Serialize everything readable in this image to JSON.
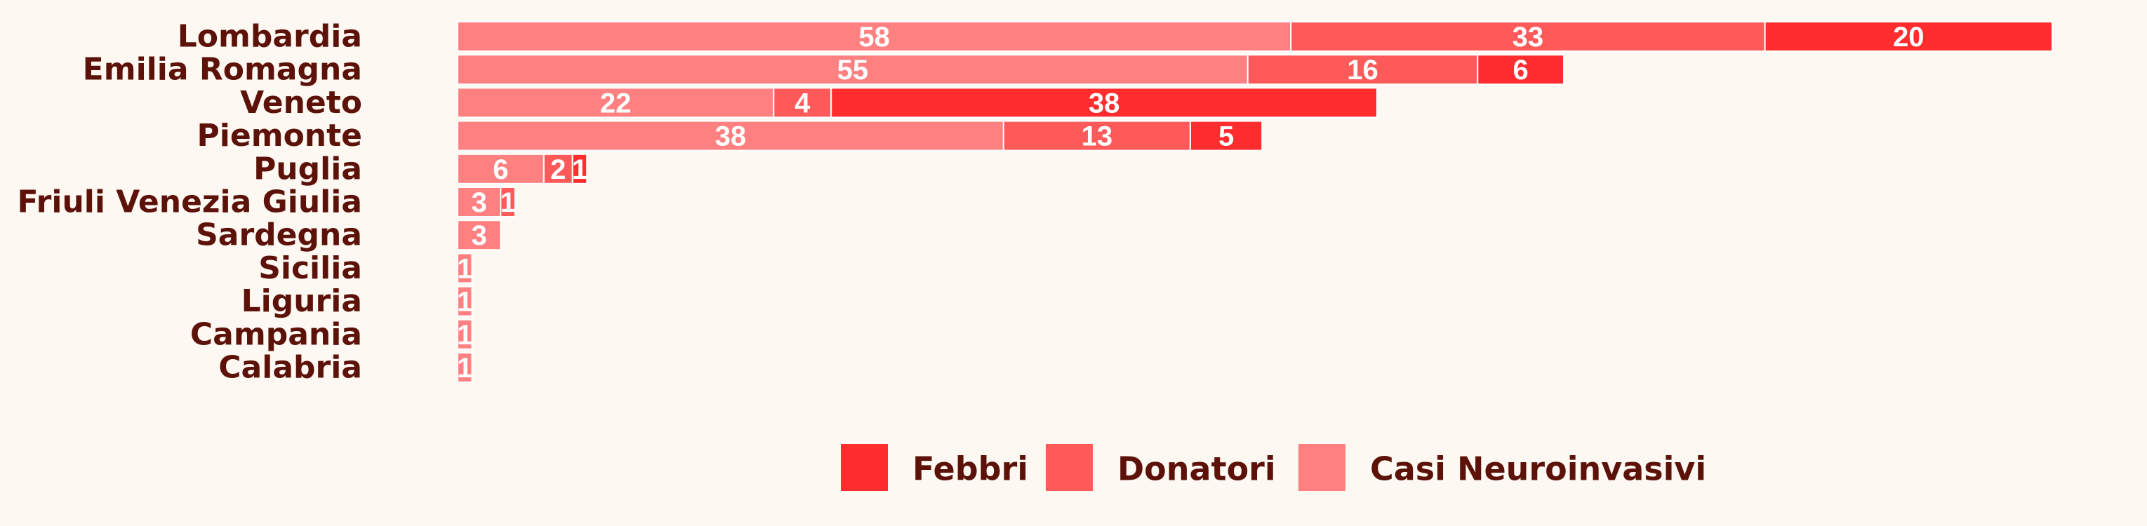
{
  "chart_data": {
    "type": "bar",
    "orientation": "horizontal",
    "stacked": true,
    "categories": [
      "Lombardia",
      "Emilia Romagna",
      "Veneto",
      "Piemonte",
      "Puglia",
      "Friuli Venezia Giulia",
      "Sardegna",
      "Sicilia",
      "Liguria",
      "Campania",
      "Calabria"
    ],
    "series": [
      {
        "name": "Casi Neuroinvasivi",
        "color": "#ff8080",
        "values": [
          58,
          55,
          22,
          38,
          6,
          3,
          3,
          1,
          1,
          1,
          1
        ]
      },
      {
        "name": "Donatori",
        "color": "#ff5a5a",
        "values": [
          33,
          16,
          4,
          13,
          2,
          1,
          0,
          0,
          0,
          0,
          0
        ]
      },
      {
        "name": "Febbri",
        "color": "#ff2d2d",
        "values": [
          20,
          6,
          38,
          5,
          1,
          0,
          0,
          0,
          0,
          0,
          0
        ]
      }
    ],
    "legend_order": [
      "Febbri",
      "Donatori",
      "Casi Neuroinvasivi"
    ],
    "legend_position": "bottom",
    "grid": false,
    "xaxis_visible": false,
    "xlim": [
      0,
      111
    ],
    "title": "",
    "xlabel": "",
    "ylabel": ""
  }
}
